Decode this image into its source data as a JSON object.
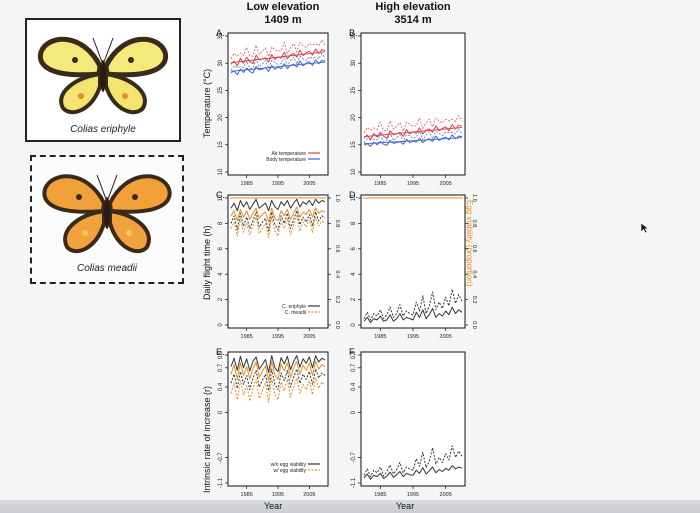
{
  "figure": {
    "col_low_title": "Low elevation",
    "col_low_sub": "1409 m",
    "col_high_title": "High elevation",
    "col_high_sub": "3514 m",
    "species_1": "Colias eriphyle",
    "species_2": "Colias meadii",
    "ylabel_temp": "Temperature (°C)",
    "ylabel_flight": "Daily flight time (h)",
    "ylabel_growth": "Intrinsic rate of increase (r)",
    "ylabel_egg": "Egg viability (proportion)",
    "xlabel": "Year"
  },
  "colors": {
    "air": "#e23a4a",
    "body": "#3a62c6",
    "eriphyle": "#333333",
    "meadii": "#f08a24",
    "egg_viab_line": "#f08a24"
  },
  "chart_data": [
    {
      "panel": "A",
      "type": "line",
      "ylim": [
        10,
        35
      ],
      "yticks": [
        10,
        15,
        20,
        25,
        30,
        35
      ],
      "xticks": [
        1985,
        1995,
        2005
      ],
      "x": [
        1980,
        1981,
        1982,
        1983,
        1984,
        1985,
        1986,
        1987,
        1988,
        1989,
        1990,
        1991,
        1992,
        1993,
        1994,
        1995,
        1996,
        1997,
        1998,
        1999,
        2000,
        2001,
        2002,
        2003,
        2004,
        2005,
        2006,
        2007,
        2008,
        2009,
        2010
      ],
      "series": [
        {
          "name": "Air temperature",
          "values": [
            29.8,
            30.4,
            29.5,
            30.9,
            30.0,
            31.1,
            30.3,
            29.9,
            31.5,
            30.6,
            30.8,
            31.0,
            30.2,
            31.6,
            30.7,
            31.2,
            30.9,
            32.0,
            30.8,
            31.5,
            31.8,
            31.1,
            32.4,
            31.4,
            31.9,
            32.2,
            31.5,
            32.6,
            31.8,
            32.5,
            32.3
          ]
        },
        {
          "name": "Body temperature",
          "values": [
            28.2,
            28.6,
            27.9,
            28.9,
            28.3,
            29.1,
            28.5,
            28.2,
            29.4,
            28.8,
            28.9,
            29.2,
            28.5,
            29.6,
            28.9,
            29.3,
            29.0,
            29.9,
            29.0,
            29.6,
            29.8,
            29.3,
            30.4,
            29.5,
            30.0,
            30.3,
            29.6,
            30.6,
            29.9,
            30.5,
            30.4
          ]
        }
      ],
      "legend": [
        "Air temperature",
        "Body temperature"
      ]
    },
    {
      "panel": "B",
      "type": "line",
      "ylim": [
        10,
        35
      ],
      "yticks": [
        10,
        15,
        20,
        25,
        30,
        35
      ],
      "xticks": [
        1985,
        1995,
        2005
      ],
      "x": [
        1980,
        1981,
        1982,
        1983,
        1984,
        1985,
        1986,
        1987,
        1988,
        1989,
        1990,
        1991,
        1992,
        1993,
        1994,
        1995,
        1996,
        1997,
        1998,
        1999,
        2000,
        2001,
        2002,
        2003,
        2004,
        2005,
        2006,
        2007,
        2008,
        2009,
        2010
      ],
      "series": [
        {
          "name": "Air temperature",
          "values": [
            16.2,
            16.8,
            15.9,
            17.1,
            16.4,
            17.3,
            16.6,
            16.2,
            17.6,
            16.9,
            17.0,
            17.3,
            16.5,
            17.8,
            17.0,
            17.4,
            17.1,
            18.1,
            17.0,
            17.7,
            17.9,
            17.3,
            18.5,
            17.6,
            18.0,
            18.3,
            17.6,
            18.7,
            17.9,
            18.6,
            18.4
          ]
        },
        {
          "name": "Body temperature",
          "values": [
            14.9,
            15.2,
            14.7,
            15.5,
            15.0,
            15.6,
            15.1,
            14.9,
            15.8,
            15.3,
            15.4,
            15.6,
            15.1,
            16.0,
            15.4,
            15.7,
            15.5,
            16.2,
            15.4,
            15.9,
            16.1,
            15.6,
            16.6,
            15.8,
            16.2,
            16.4,
            15.9,
            16.8,
            16.1,
            16.6,
            16.5
          ]
        }
      ]
    },
    {
      "panel": "C",
      "type": "line",
      "ylim": [
        0,
        10
      ],
      "yticks": [
        0,
        2,
        4,
        6,
        8,
        10
      ],
      "y2lim": [
        0,
        1
      ],
      "y2ticks": [
        0.0,
        0.2,
        0.4,
        0.6,
        0.8,
        1.0
      ],
      "xticks": [
        1985,
        1995,
        2005
      ],
      "x": [
        1980,
        1981,
        1982,
        1983,
        1984,
        1985,
        1986,
        1987,
        1988,
        1989,
        1990,
        1991,
        1992,
        1993,
        1994,
        1995,
        1996,
        1997,
        1998,
        1999,
        2000,
        2001,
        2002,
        2003,
        2004,
        2005,
        2006,
        2007,
        2008,
        2009,
        2010
      ],
      "series": [
        {
          "name": "C. eriphyle",
          "values": [
            9.2,
            9.6,
            9.0,
            9.8,
            9.3,
            9.7,
            9.1,
            9.5,
            9.9,
            9.2,
            9.4,
            9.6,
            9.0,
            9.8,
            9.3,
            9.1,
            9.7,
            9.4,
            9.8,
            9.2,
            9.6,
            9.9,
            9.3,
            9.7,
            9.5,
            9.8,
            9.4,
            9.9,
            9.6,
            9.8,
            9.7
          ]
        },
        {
          "name": "C. meadii",
          "values": [
            8.6,
            9.0,
            8.2,
            9.1,
            8.5,
            9.0,
            8.3,
            8.8,
            9.2,
            8.4,
            8.7,
            8.9,
            8.1,
            9.2,
            8.4,
            8.2,
            9.0,
            8.6,
            9.1,
            8.3,
            8.8,
            9.3,
            8.5,
            8.9,
            8.7,
            9.1,
            8.5,
            9.2,
            8.8,
            9.0,
            8.9
          ]
        },
        {
          "name": "C. eriphyle dashed",
          "values": [
            8.0,
            8.6,
            7.5,
            8.8,
            7.8,
            8.5,
            7.6,
            8.2,
            8.9,
            7.7,
            8.1,
            8.4,
            7.4,
            8.9,
            7.9,
            7.5,
            8.6,
            8.0,
            8.8,
            7.6,
            8.3,
            9.0,
            7.9,
            8.5,
            8.1,
            8.7,
            7.8,
            8.9,
            8.2,
            8.6,
            8.4
          ]
        },
        {
          "name": "C. meadii dashed",
          "values": [
            7.6,
            8.1,
            7.0,
            8.4,
            7.3,
            8.0,
            7.1,
            7.8,
            8.5,
            7.2,
            7.6,
            8.0,
            6.9,
            8.5,
            7.4,
            7.0,
            8.2,
            7.6,
            8.4,
            7.1,
            7.9,
            8.6,
            7.4,
            8.1,
            7.7,
            8.3,
            7.3,
            8.5,
            7.8,
            8.2,
            8.0
          ]
        }
      ],
      "egg_viability": 1.0,
      "legend": [
        "C. eriphyle",
        "C. meadii"
      ]
    },
    {
      "panel": "D",
      "type": "line",
      "ylim": [
        0,
        10
      ],
      "yticks": [
        0,
        2,
        4,
        6,
        8,
        10
      ],
      "y2lim": [
        0,
        1
      ],
      "y2ticks": [
        0.0,
        0.2,
        0.4,
        0.6,
        0.8,
        1.0
      ],
      "xticks": [
        1985,
        1995,
        2005
      ],
      "x": [
        1980,
        1981,
        1982,
        1983,
        1984,
        1985,
        1986,
        1987,
        1988,
        1989,
        1990,
        1991,
        1992,
        1993,
        1994,
        1995,
        1996,
        1997,
        1998,
        1999,
        2000,
        2001,
        2002,
        2003,
        2004,
        2005,
        2006,
        2007,
        2008,
        2009,
        2010
      ],
      "series": [
        {
          "name": "C. eriphyle",
          "values": [
            0.3,
            0.6,
            0.2,
            0.5,
            0.4,
            0.7,
            0.3,
            0.4,
            0.8,
            0.3,
            0.5,
            0.9,
            0.4,
            0.6,
            0.5,
            0.4,
            1.0,
            0.6,
            1.2,
            0.5,
            0.8,
            1.3,
            0.6,
            0.9,
            0.7,
            1.1,
            0.8,
            1.4,
            0.9,
            1.2,
            1.0
          ]
        },
        {
          "name": "C. meadii",
          "values": [
            0.5,
            1.0,
            0.4,
            0.9,
            0.7,
            1.2,
            0.5,
            0.8,
            1.4,
            0.6,
            0.9,
            1.6,
            0.7,
            1.1,
            0.9,
            0.8,
            1.8,
            1.1,
            2.3,
            0.9,
            1.5,
            2.6,
            1.2,
            1.8,
            1.3,
            2.2,
            1.5,
            2.8,
            1.7,
            2.4,
            1.9
          ]
        }
      ],
      "egg_viability": 1.0
    },
    {
      "panel": "E",
      "type": "line",
      "ylim": [
        -1.1,
        0.9
      ],
      "yticks": [
        -1.1,
        -0.7,
        0,
        0.4,
        0.7,
        0.9
      ],
      "xticks": [
        1985,
        1995,
        2005
      ],
      "x": [
        1980,
        1981,
        1982,
        1983,
        1984,
        1985,
        1986,
        1987,
        1988,
        1989,
        1990,
        1991,
        1992,
        1993,
        1994,
        1995,
        1996,
        1997,
        1998,
        1999,
        2000,
        2001,
        2002,
        2003,
        2004,
        2005,
        2006,
        2007,
        2008,
        2009,
        2010
      ],
      "series": [
        {
          "name": "C. eriphyle w/o egg viability",
          "values": [
            0.72,
            0.85,
            0.66,
            0.88,
            0.7,
            0.84,
            0.65,
            0.8,
            0.87,
            0.68,
            0.75,
            0.83,
            0.63,
            0.89,
            0.7,
            0.64,
            0.86,
            0.76,
            0.88,
            0.67,
            0.8,
            0.89,
            0.71,
            0.84,
            0.77,
            0.87,
            0.7,
            0.89,
            0.79,
            0.85,
            0.82
          ]
        },
        {
          "name": "C. meadii w/o egg viability",
          "values": [
            0.6,
            0.75,
            0.52,
            0.78,
            0.58,
            0.72,
            0.53,
            0.69,
            0.79,
            0.55,
            0.64,
            0.73,
            0.5,
            0.8,
            0.59,
            0.52,
            0.76,
            0.65,
            0.78,
            0.55,
            0.7,
            0.8,
            0.6,
            0.74,
            0.66,
            0.77,
            0.58,
            0.8,
            0.68,
            0.75,
            0.72
          ]
        },
        {
          "name": "C. eriphyle w/ egg viability",
          "values": [
            0.46,
            0.6,
            0.38,
            0.64,
            0.44,
            0.58,
            0.36,
            0.54,
            0.66,
            0.4,
            0.5,
            0.6,
            0.34,
            0.68,
            0.44,
            0.36,
            0.62,
            0.5,
            0.66,
            0.4,
            0.56,
            0.68,
            0.46,
            0.6,
            0.52,
            0.64,
            0.44,
            0.68,
            0.54,
            0.62,
            0.58
          ]
        },
        {
          "name": "C. meadii w/ egg viability",
          "values": [
            0.3,
            0.46,
            0.2,
            0.5,
            0.28,
            0.42,
            0.18,
            0.38,
            0.52,
            0.22,
            0.34,
            0.46,
            0.16,
            0.54,
            0.28,
            0.2,
            0.48,
            0.34,
            0.52,
            0.24,
            0.4,
            0.54,
            0.3,
            0.44,
            0.36,
            0.5,
            0.28,
            0.54,
            0.38,
            0.48,
            0.42
          ]
        }
      ],
      "legend": [
        "w/o egg viability",
        "w/ egg viability"
      ]
    },
    {
      "panel": "F",
      "type": "line",
      "ylim": [
        -1.1,
        0.9
      ],
      "yticks": [
        -1.1,
        -0.7,
        0,
        0.4,
        0.7,
        0.9
      ],
      "xticks": [
        1985,
        1995,
        2005
      ],
      "x": [
        1980,
        1981,
        1982,
        1983,
        1984,
        1985,
        1986,
        1987,
        1988,
        1989,
        1990,
        1991,
        1992,
        1993,
        1994,
        1995,
        1996,
        1997,
        1998,
        1999,
        2000,
        2001,
        2002,
        2003,
        2004,
        2005,
        2006,
        2007,
        2008,
        2009,
        2010
      ],
      "series": [
        {
          "name": "C. eriphyle",
          "values": [
            -1.02,
            -0.96,
            -1.04,
            -0.98,
            -1.0,
            -0.95,
            -1.03,
            -0.99,
            -0.93,
            -1.01,
            -0.97,
            -0.92,
            -1.0,
            -0.95,
            -0.97,
            -0.98,
            -0.9,
            -0.95,
            -0.86,
            -0.96,
            -0.91,
            -0.85,
            -0.94,
            -0.89,
            -0.92,
            -0.87,
            -0.9,
            -0.83,
            -0.88,
            -0.85,
            -0.87
          ]
        },
        {
          "name": "C. meadii",
          "values": [
            -0.98,
            -0.88,
            -1.0,
            -0.9,
            -0.94,
            -0.85,
            -0.99,
            -0.92,
            -0.82,
            -0.96,
            -0.89,
            -0.78,
            -0.94,
            -0.85,
            -0.88,
            -0.9,
            -0.72,
            -0.84,
            -0.62,
            -0.86,
            -0.76,
            -0.55,
            -0.8,
            -0.7,
            -0.78,
            -0.64,
            -0.74,
            -0.52,
            -0.7,
            -0.6,
            -0.68
          ]
        }
      ]
    }
  ]
}
